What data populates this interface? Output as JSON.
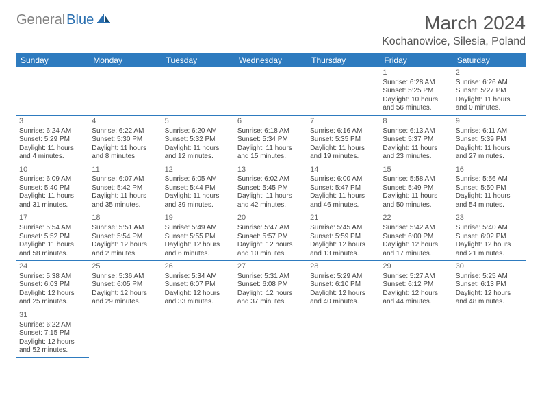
{
  "logo": {
    "gray": "General",
    "blue": "Blue"
  },
  "title": "March 2024",
  "location": "Kochanowice, Silesia, Poland",
  "day_headers": [
    "Sunday",
    "Monday",
    "Tuesday",
    "Wednesday",
    "Thursday",
    "Friday",
    "Saturday"
  ],
  "colors": {
    "header_bg": "#2e7bbf",
    "header_text": "#ffffff",
    "border": "#2e7bbf",
    "logo_gray": "#808080",
    "logo_blue": "#2a6fb0"
  },
  "weeks": [
    [
      null,
      null,
      null,
      null,
      null,
      {
        "n": "1",
        "sr": "Sunrise: 6:28 AM",
        "ss": "Sunset: 5:25 PM",
        "d1": "Daylight: 10 hours",
        "d2": "and 56 minutes."
      },
      {
        "n": "2",
        "sr": "Sunrise: 6:26 AM",
        "ss": "Sunset: 5:27 PM",
        "d1": "Daylight: 11 hours",
        "d2": "and 0 minutes."
      }
    ],
    [
      {
        "n": "3",
        "sr": "Sunrise: 6:24 AM",
        "ss": "Sunset: 5:29 PM",
        "d1": "Daylight: 11 hours",
        "d2": "and 4 minutes."
      },
      {
        "n": "4",
        "sr": "Sunrise: 6:22 AM",
        "ss": "Sunset: 5:30 PM",
        "d1": "Daylight: 11 hours",
        "d2": "and 8 minutes."
      },
      {
        "n": "5",
        "sr": "Sunrise: 6:20 AM",
        "ss": "Sunset: 5:32 PM",
        "d1": "Daylight: 11 hours",
        "d2": "and 12 minutes."
      },
      {
        "n": "6",
        "sr": "Sunrise: 6:18 AM",
        "ss": "Sunset: 5:34 PM",
        "d1": "Daylight: 11 hours",
        "d2": "and 15 minutes."
      },
      {
        "n": "7",
        "sr": "Sunrise: 6:16 AM",
        "ss": "Sunset: 5:35 PM",
        "d1": "Daylight: 11 hours",
        "d2": "and 19 minutes."
      },
      {
        "n": "8",
        "sr": "Sunrise: 6:13 AM",
        "ss": "Sunset: 5:37 PM",
        "d1": "Daylight: 11 hours",
        "d2": "and 23 minutes."
      },
      {
        "n": "9",
        "sr": "Sunrise: 6:11 AM",
        "ss": "Sunset: 5:39 PM",
        "d1": "Daylight: 11 hours",
        "d2": "and 27 minutes."
      }
    ],
    [
      {
        "n": "10",
        "sr": "Sunrise: 6:09 AM",
        "ss": "Sunset: 5:40 PM",
        "d1": "Daylight: 11 hours",
        "d2": "and 31 minutes."
      },
      {
        "n": "11",
        "sr": "Sunrise: 6:07 AM",
        "ss": "Sunset: 5:42 PM",
        "d1": "Daylight: 11 hours",
        "d2": "and 35 minutes."
      },
      {
        "n": "12",
        "sr": "Sunrise: 6:05 AM",
        "ss": "Sunset: 5:44 PM",
        "d1": "Daylight: 11 hours",
        "d2": "and 39 minutes."
      },
      {
        "n": "13",
        "sr": "Sunrise: 6:02 AM",
        "ss": "Sunset: 5:45 PM",
        "d1": "Daylight: 11 hours",
        "d2": "and 42 minutes."
      },
      {
        "n": "14",
        "sr": "Sunrise: 6:00 AM",
        "ss": "Sunset: 5:47 PM",
        "d1": "Daylight: 11 hours",
        "d2": "and 46 minutes."
      },
      {
        "n": "15",
        "sr": "Sunrise: 5:58 AM",
        "ss": "Sunset: 5:49 PM",
        "d1": "Daylight: 11 hours",
        "d2": "and 50 minutes."
      },
      {
        "n": "16",
        "sr": "Sunrise: 5:56 AM",
        "ss": "Sunset: 5:50 PM",
        "d1": "Daylight: 11 hours",
        "d2": "and 54 minutes."
      }
    ],
    [
      {
        "n": "17",
        "sr": "Sunrise: 5:54 AM",
        "ss": "Sunset: 5:52 PM",
        "d1": "Daylight: 11 hours",
        "d2": "and 58 minutes."
      },
      {
        "n": "18",
        "sr": "Sunrise: 5:51 AM",
        "ss": "Sunset: 5:54 PM",
        "d1": "Daylight: 12 hours",
        "d2": "and 2 minutes."
      },
      {
        "n": "19",
        "sr": "Sunrise: 5:49 AM",
        "ss": "Sunset: 5:55 PM",
        "d1": "Daylight: 12 hours",
        "d2": "and 6 minutes."
      },
      {
        "n": "20",
        "sr": "Sunrise: 5:47 AM",
        "ss": "Sunset: 5:57 PM",
        "d1": "Daylight: 12 hours",
        "d2": "and 10 minutes."
      },
      {
        "n": "21",
        "sr": "Sunrise: 5:45 AM",
        "ss": "Sunset: 5:59 PM",
        "d1": "Daylight: 12 hours",
        "d2": "and 13 minutes."
      },
      {
        "n": "22",
        "sr": "Sunrise: 5:42 AM",
        "ss": "Sunset: 6:00 PM",
        "d1": "Daylight: 12 hours",
        "d2": "and 17 minutes."
      },
      {
        "n": "23",
        "sr": "Sunrise: 5:40 AM",
        "ss": "Sunset: 6:02 PM",
        "d1": "Daylight: 12 hours",
        "d2": "and 21 minutes."
      }
    ],
    [
      {
        "n": "24",
        "sr": "Sunrise: 5:38 AM",
        "ss": "Sunset: 6:03 PM",
        "d1": "Daylight: 12 hours",
        "d2": "and 25 minutes."
      },
      {
        "n": "25",
        "sr": "Sunrise: 5:36 AM",
        "ss": "Sunset: 6:05 PM",
        "d1": "Daylight: 12 hours",
        "d2": "and 29 minutes."
      },
      {
        "n": "26",
        "sr": "Sunrise: 5:34 AM",
        "ss": "Sunset: 6:07 PM",
        "d1": "Daylight: 12 hours",
        "d2": "and 33 minutes."
      },
      {
        "n": "27",
        "sr": "Sunrise: 5:31 AM",
        "ss": "Sunset: 6:08 PM",
        "d1": "Daylight: 12 hours",
        "d2": "and 37 minutes."
      },
      {
        "n": "28",
        "sr": "Sunrise: 5:29 AM",
        "ss": "Sunset: 6:10 PM",
        "d1": "Daylight: 12 hours",
        "d2": "and 40 minutes."
      },
      {
        "n": "29",
        "sr": "Sunrise: 5:27 AM",
        "ss": "Sunset: 6:12 PM",
        "d1": "Daylight: 12 hours",
        "d2": "and 44 minutes."
      },
      {
        "n": "30",
        "sr": "Sunrise: 5:25 AM",
        "ss": "Sunset: 6:13 PM",
        "d1": "Daylight: 12 hours",
        "d2": "and 48 minutes."
      }
    ],
    [
      {
        "n": "31",
        "sr": "Sunrise: 6:22 AM",
        "ss": "Sunset: 7:15 PM",
        "d1": "Daylight: 12 hours",
        "d2": "and 52 minutes."
      },
      null,
      null,
      null,
      null,
      null,
      null
    ]
  ]
}
